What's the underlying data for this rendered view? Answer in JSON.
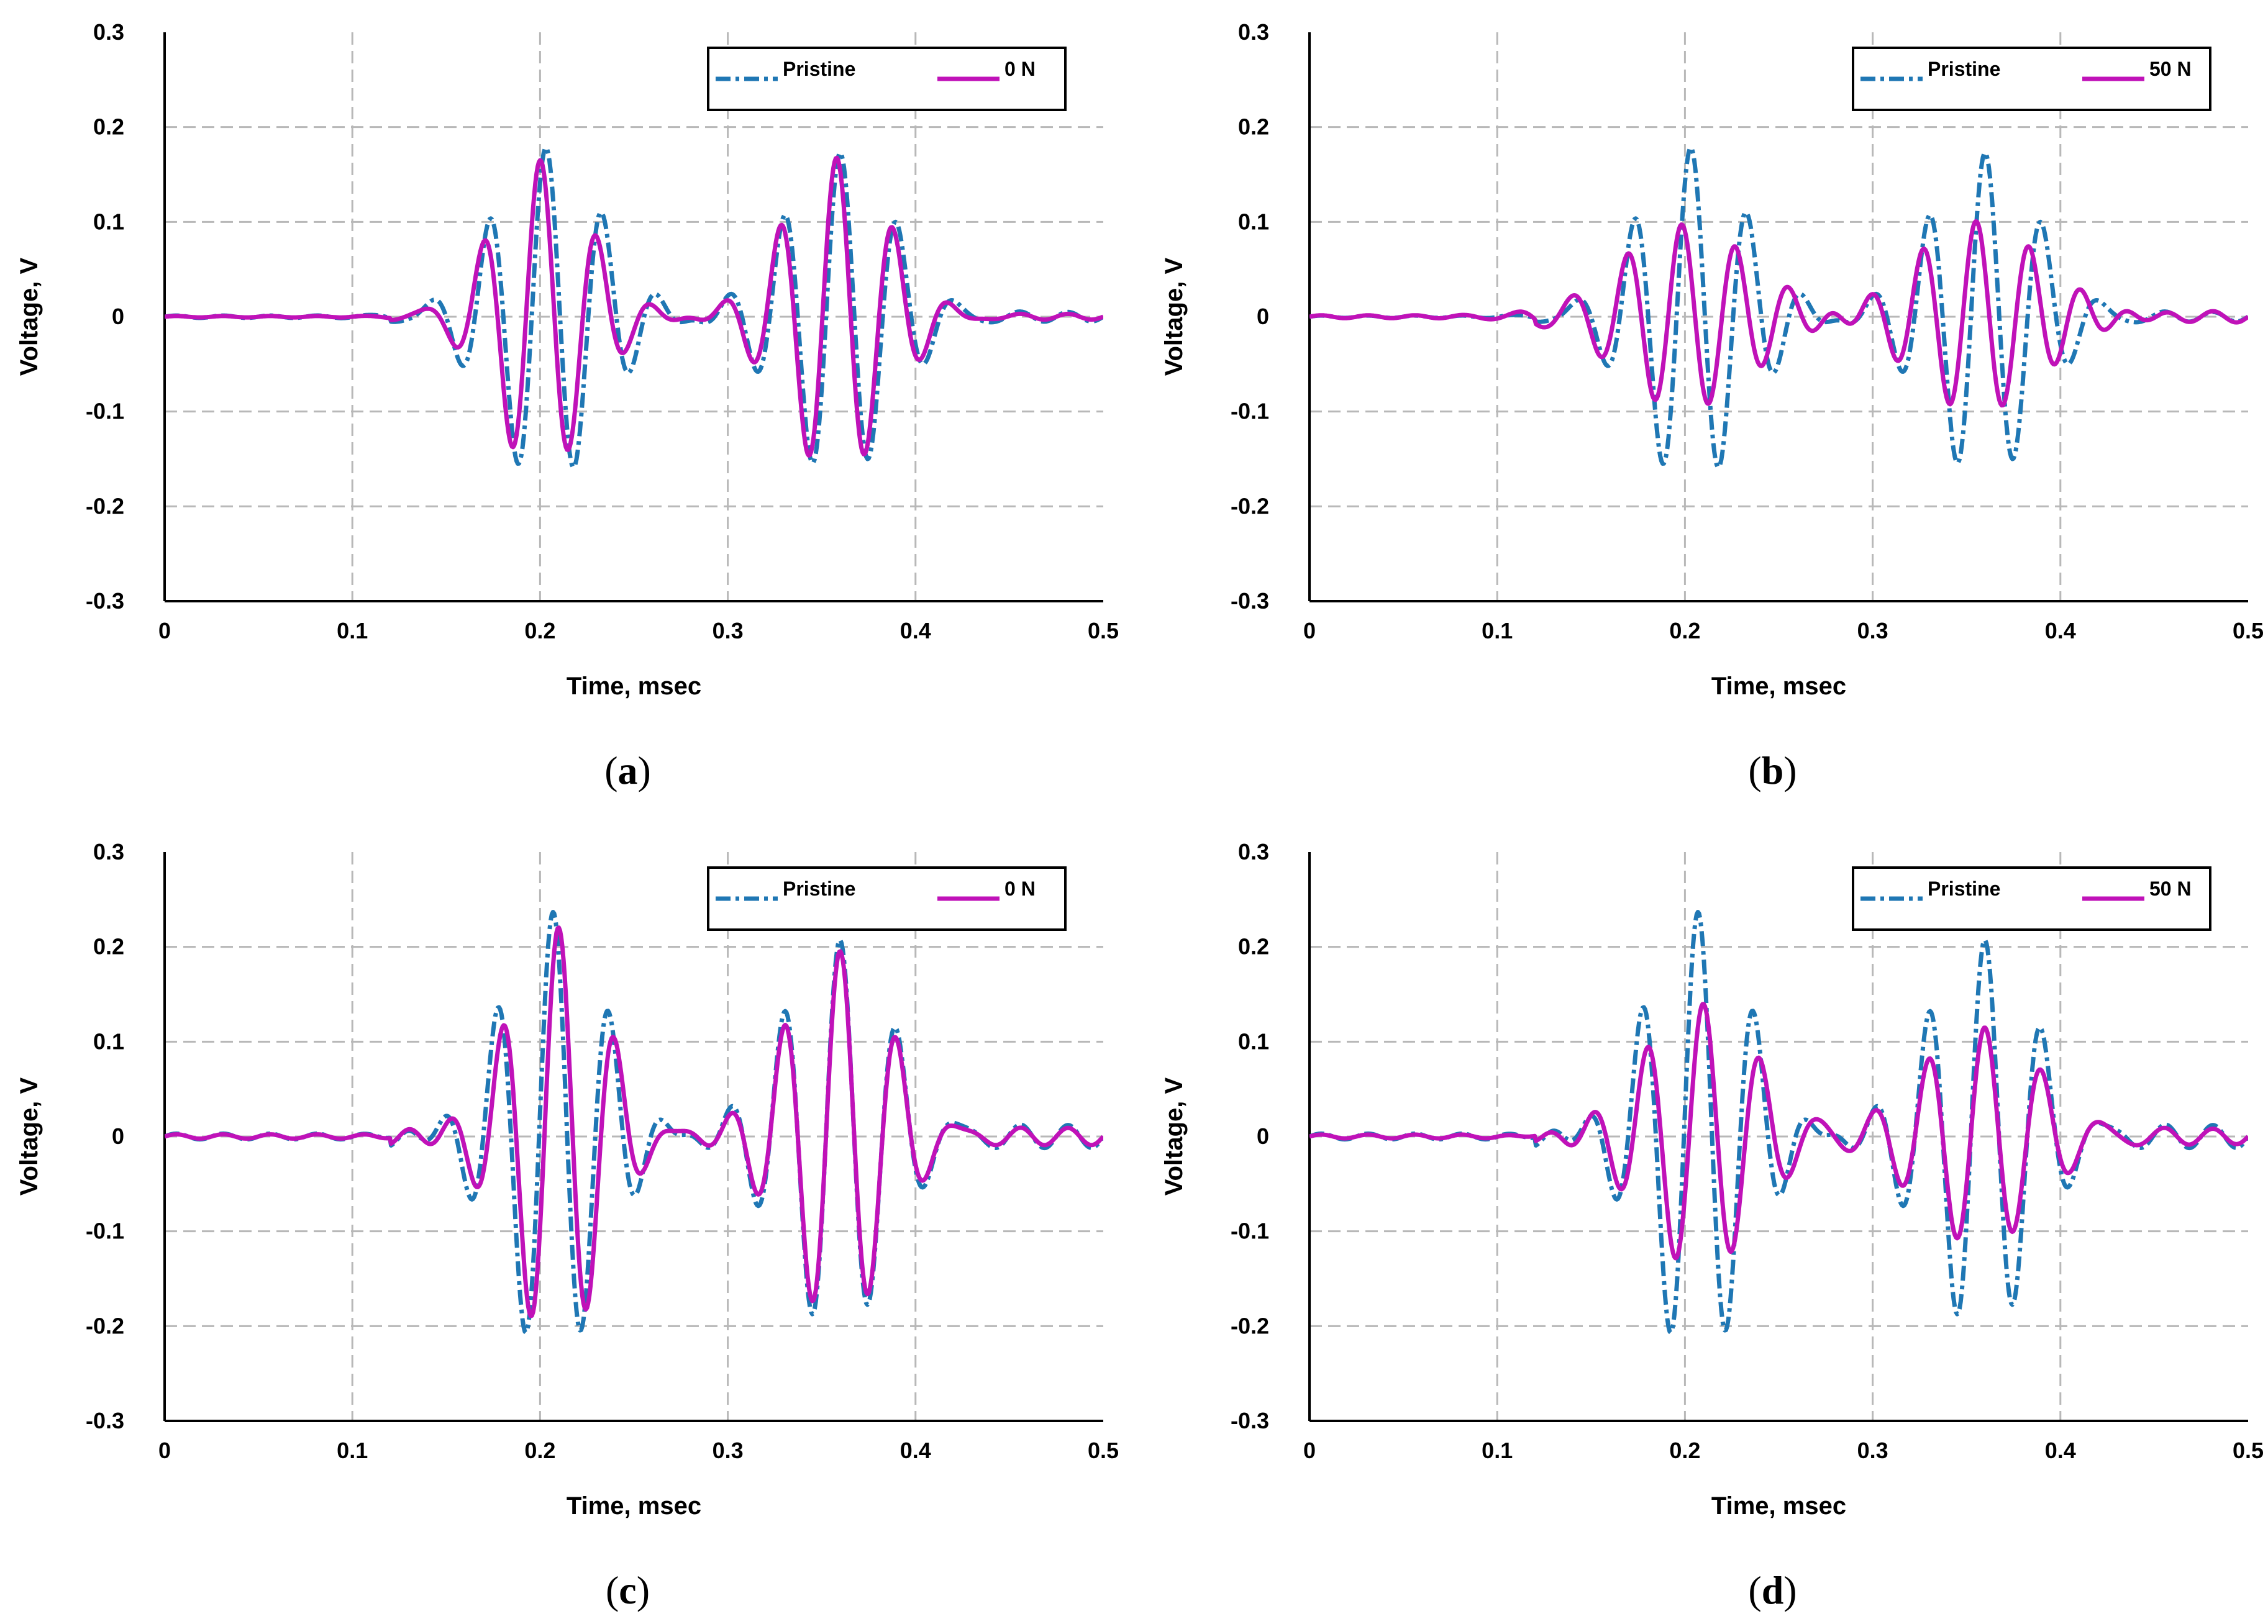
{
  "colors": {
    "pristine": "#1f77b4",
    "load": "#c012b8"
  },
  "chart_data": [
    {
      "type": "line",
      "caption": "a",
      "xlabel": "Time, msec",
      "ylabel": "Voltage, V",
      "xlim": [
        0,
        0.5
      ],
      "ylim": [
        -0.3,
        0.3
      ],
      "xticks": [
        "0",
        "0.1",
        "0.2",
        "0.3",
        "0.4",
        "0.5"
      ],
      "yticks": [
        "0.3",
        "0.2",
        "0.1",
        "0",
        "-0.1",
        "-0.2",
        "-0.3"
      ],
      "legend_position": "top-right",
      "series": [
        {
          "name": "Pristine",
          "style": "dash-dot",
          "color_key": "pristine",
          "amp1": 0.175,
          "amp2": 0.17,
          "noise": 0.005,
          "t1": 0.203,
          "t2": 0.36,
          "w1": 0.042,
          "w2": 0.042,
          "freq": 33
        },
        {
          "name": "0 N",
          "style": "solid",
          "color_key": "load",
          "amp1": 0.165,
          "amp2": 0.165,
          "noise": 0.003,
          "t1": 0.2,
          "t2": 0.358,
          "w1": 0.036,
          "w2": 0.04,
          "freq": 33
        }
      ]
    },
    {
      "type": "line",
      "caption": "b",
      "xlabel": "Time, msec",
      "ylabel": "Voltage, V",
      "xlim": [
        0,
        0.5
      ],
      "ylim": [
        -0.3,
        0.3
      ],
      "xticks": [
        "0",
        "0.1",
        "0.2",
        "0.3",
        "0.4",
        "0.5"
      ],
      "yticks": [
        "0.3",
        "0.2",
        "0.1",
        "0",
        "-0.1",
        "-0.2",
        "-0.3"
      ],
      "legend_position": "top-right",
      "series": [
        {
          "name": "Pristine",
          "style": "dash-dot",
          "color_key": "pristine",
          "amp1": 0.175,
          "amp2": 0.17,
          "noise": 0.005,
          "t1": 0.203,
          "t2": 0.36,
          "w1": 0.042,
          "w2": 0.042,
          "freq": 33
        },
        {
          "name": "50 N",
          "style": "solid",
          "color_key": "load",
          "amp1": 0.1,
          "amp2": 0.095,
          "noise": 0.006,
          "t1": 0.198,
          "t2": 0.355,
          "w1": 0.05,
          "w2": 0.05,
          "freq": 35
        }
      ]
    },
    {
      "type": "line",
      "caption": "c",
      "xlabel": "Time, msec",
      "ylabel": "Voltage, V",
      "xlim": [
        0,
        0.5
      ],
      "ylim": [
        -0.3,
        0.3
      ],
      "xticks": [
        "0",
        "0.1",
        "0.2",
        "0.3",
        "0.4",
        "0.5"
      ],
      "yticks": [
        "0.3",
        "0.2",
        "0.1",
        "0",
        "-0.1",
        "-0.2",
        "-0.3"
      ],
      "legend_position": "top-right",
      "series": [
        {
          "name": "Pristine",
          "style": "dash-dot",
          "color_key": "pristine",
          "amp1": 0.225,
          "amp2": 0.2,
          "noise": 0.012,
          "t1": 0.207,
          "t2": 0.36,
          "w1": 0.04,
          "w2": 0.042,
          "freq": 33
        },
        {
          "name": "0 N",
          "style": "solid",
          "color_key": "load",
          "amp1": 0.215,
          "amp2": 0.19,
          "noise": 0.009,
          "t1": 0.21,
          "t2": 0.36,
          "w1": 0.036,
          "w2": 0.04,
          "freq": 33
        }
      ]
    },
    {
      "type": "line",
      "caption": "d",
      "xlabel": "Time, msec",
      "ylabel": "Voltage, V",
      "xlim": [
        0,
        0.5
      ],
      "ylim": [
        -0.3,
        0.3
      ],
      "xticks": [
        "0",
        "0.1",
        "0.2",
        "0.3",
        "0.4",
        "0.5"
      ],
      "yticks": [
        "0.3",
        "0.2",
        "0.1",
        "0",
        "-0.1",
        "-0.2",
        "-0.3"
      ],
      "legend_position": "top-right",
      "series": [
        {
          "name": "Pristine",
          "style": "dash-dot",
          "color_key": "pristine",
          "amp1": 0.225,
          "amp2": 0.2,
          "noise": 0.012,
          "t1": 0.207,
          "t2": 0.36,
          "w1": 0.04,
          "w2": 0.042,
          "freq": 33
        },
        {
          "name": "50 N",
          "style": "solid",
          "color_key": "load",
          "amp1": 0.135,
          "amp2": 0.11,
          "noise": 0.008,
          "t1": 0.21,
          "t2": 0.36,
          "w1": 0.045,
          "w2": 0.048,
          "freq": 33
        }
      ]
    }
  ]
}
